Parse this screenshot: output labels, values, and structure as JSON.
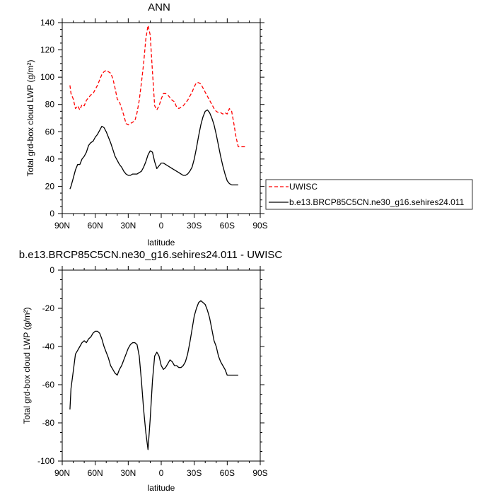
{
  "chart_data": [
    {
      "type": "line",
      "title": "ANN",
      "xlabel": "latitude",
      "ylabel": "Total grd-box cloud LWP (g/m²)",
      "xlim": [
        -90,
        90
      ],
      "ylim": [
        0,
        140
      ],
      "xticks": [
        -90,
        -60,
        -30,
        0,
        30,
        60,
        90
      ],
      "xtick_labels": [
        "90N",
        "60N",
        "30N",
        "0",
        "30S",
        "60S",
        "90S"
      ],
      "yticks": [
        0,
        20,
        40,
        60,
        80,
        100,
        120,
        140
      ],
      "ytick_labels": [
        "0",
        "20",
        "40",
        "60",
        "80",
        "100",
        "120",
        "140"
      ],
      "grid": false,
      "legend_placement": "right, outside plot",
      "series": [
        {
          "name": "UWISC",
          "color": "#ff0000",
          "style": "dashed",
          "x": [
            -83,
            -82,
            -80,
            -78,
            -76,
            -74,
            -72,
            -70,
            -68,
            -66,
            -64,
            -62,
            -60,
            -58,
            -56,
            -54,
            -52,
            -50,
            -48,
            -46,
            -44,
            -42,
            -40,
            -38,
            -36,
            -34,
            -32,
            -30,
            -28,
            -26,
            -24,
            -22,
            -20,
            -18,
            -16,
            -14,
            -12,
            -10,
            -8,
            -6,
            -4,
            -2,
            0,
            2,
            4,
            6,
            8,
            10,
            12,
            14,
            16,
            18,
            20,
            22,
            24,
            26,
            28,
            30,
            32,
            34,
            36,
            38,
            40,
            42,
            44,
            46,
            48,
            50,
            52,
            54,
            56,
            58,
            60,
            62,
            64,
            66,
            68,
            70,
            72,
            74,
            76,
            78
          ],
          "y": [
            94,
            88,
            84,
            77,
            79,
            76,
            80,
            79,
            83,
            85,
            87,
            88,
            91,
            94,
            98,
            102,
            104,
            105,
            104,
            103,
            99,
            92,
            84,
            82,
            77,
            72,
            66,
            65,
            66,
            67,
            68,
            74,
            83,
            96,
            110,
            128,
            138,
            131,
            104,
            79,
            76,
            79,
            84,
            88,
            88,
            87,
            85,
            83,
            82,
            78,
            77,
            78,
            79,
            81,
            83,
            86,
            89,
            93,
            96,
            96,
            95,
            92,
            89,
            86,
            83,
            80,
            77,
            75,
            74,
            74,
            73,
            74,
            73,
            77,
            75,
            66,
            56,
            49,
            49,
            49,
            49,
            49
          ]
        },
        {
          "name": "b.e13.BRCP85C5CN.ne30_g16.sehires24.011",
          "color": "#000000",
          "style": "solid",
          "x": [
            -83,
            -82,
            -80,
            -78,
            -76,
            -74,
            -72,
            -70,
            -68,
            -66,
            -64,
            -62,
            -60,
            -58,
            -56,
            -54,
            -52,
            -50,
            -48,
            -46,
            -44,
            -42,
            -40,
            -38,
            -36,
            -34,
            -32,
            -30,
            -28,
            -26,
            -24,
            -22,
            -20,
            -18,
            -16,
            -14,
            -12,
            -10,
            -8,
            -6,
            -4,
            -2,
            0,
            2,
            4,
            6,
            8,
            10,
            12,
            14,
            16,
            18,
            20,
            22,
            24,
            26,
            28,
            30,
            32,
            34,
            36,
            38,
            40,
            42,
            44,
            46,
            48,
            50,
            52,
            54,
            56,
            58,
            60,
            62,
            64,
            66,
            68,
            70
          ],
          "y": [
            18,
            20,
            26,
            32,
            36,
            36,
            40,
            42,
            45,
            50,
            52,
            53,
            56,
            58,
            61,
            64,
            63,
            60,
            56,
            52,
            47,
            42,
            39,
            36,
            34,
            31,
            29,
            28,
            28,
            29,
            29,
            29,
            30,
            31,
            34,
            38,
            43,
            46,
            45,
            38,
            33,
            35,
            37,
            37,
            36,
            35,
            34,
            33,
            32,
            31,
            30,
            29,
            28,
            28,
            29,
            31,
            34,
            40,
            48,
            57,
            65,
            71,
            75,
            76,
            74,
            70,
            65,
            58,
            50,
            42,
            35,
            29,
            24,
            22,
            21,
            21,
            21,
            21
          ]
        }
      ]
    },
    {
      "type": "line",
      "title": "b.e13.BRCP85C5CN.ne30_g16.sehires24.011 - UWISC",
      "xlabel": "latitude",
      "ylabel": "Total grd-box cloud LWP (g/m²)",
      "xlim": [
        -90,
        90
      ],
      "ylim": [
        -100,
        0
      ],
      "xticks": [
        -90,
        -60,
        -30,
        0,
        30,
        60,
        90
      ],
      "xtick_labels": [
        "90N",
        "60N",
        "30N",
        "0",
        "30S",
        "60S",
        "90S"
      ],
      "yticks": [
        -100,
        -80,
        -60,
        -40,
        -20,
        0
      ],
      "ytick_labels": [
        "-100",
        "-80",
        "-60",
        "-40",
        "-20",
        "0"
      ],
      "grid": false,
      "series": [
        {
          "color": "#000000",
          "style": "solid",
          "x": [
            -83,
            -82,
            -80,
            -78,
            -76,
            -74,
            -72,
            -70,
            -68,
            -66,
            -64,
            -62,
            -60,
            -58,
            -56,
            -54,
            -52,
            -50,
            -48,
            -46,
            -44,
            -42,
            -40,
            -38,
            -36,
            -34,
            -32,
            -30,
            -28,
            -26,
            -24,
            -22,
            -20,
            -18,
            -16,
            -14,
            -12,
            -10,
            -8,
            -6,
            -4,
            -2,
            0,
            2,
            4,
            6,
            8,
            10,
            12,
            14,
            16,
            18,
            20,
            22,
            24,
            26,
            28,
            30,
            32,
            34,
            36,
            38,
            40,
            42,
            44,
            46,
            48,
            50,
            52,
            54,
            56,
            58,
            60,
            62,
            64,
            66,
            68,
            70
          ],
          "y": [
            -73,
            -62,
            -53,
            -44,
            -42,
            -40,
            -38,
            -37,
            -38,
            -36,
            -35,
            -33,
            -32,
            -32,
            -33,
            -36,
            -40,
            -43,
            -46,
            -50,
            -52,
            -54,
            -55,
            -52,
            -50,
            -47,
            -44,
            -41,
            -39,
            -38,
            -38,
            -39,
            -45,
            -58,
            -73,
            -85,
            -94,
            -78,
            -58,
            -45,
            -43,
            -45,
            -50,
            -52,
            -51,
            -49,
            -47,
            -48,
            -50,
            -50,
            -51,
            -51,
            -50,
            -48,
            -44,
            -38,
            -31,
            -24,
            -20,
            -17,
            -16,
            -17,
            -18,
            -21,
            -25,
            -31,
            -37,
            -40,
            -45,
            -48,
            -50,
            -52,
            -55,
            -55,
            -55,
            -55,
            -55,
            -55
          ]
        }
      ]
    }
  ]
}
